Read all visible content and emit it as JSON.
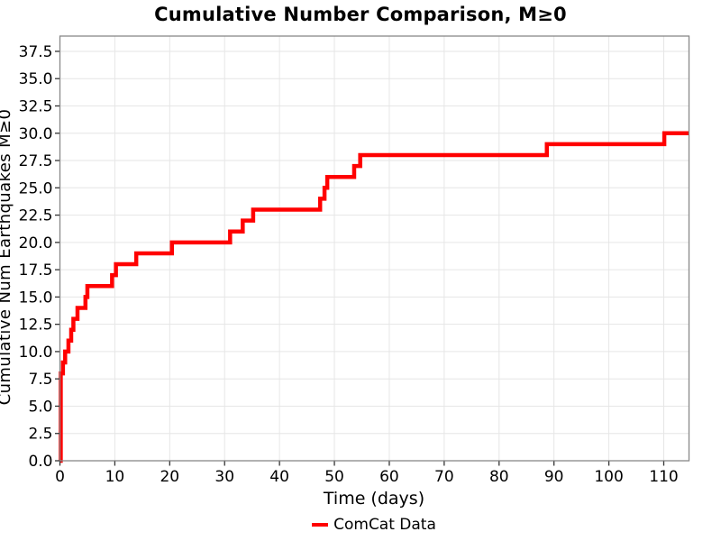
{
  "chart_data": {
    "type": "line",
    "line_style": "step-post",
    "title": "Cumulative Number Comparison, M≥0",
    "xlabel": "Time (days)",
    "ylabel": "Cumulative Num Earthquakes M≥0",
    "xlim": [
      0,
      114.6
    ],
    "ylim": [
      0,
      38.9
    ],
    "xticks": [
      0,
      10,
      20,
      30,
      40,
      50,
      60,
      70,
      80,
      90,
      100,
      110
    ],
    "yticks": [
      0.0,
      2.5,
      5.0,
      7.5,
      10.0,
      12.5,
      15.0,
      17.5,
      20.0,
      22.5,
      25.0,
      27.5,
      30.0,
      32.5,
      35.0,
      37.5
    ],
    "grid": true,
    "legend_position": "bottom-center",
    "series": [
      {
        "name": "ComCat Data",
        "color": "#ff0000",
        "points": [
          [
            0,
            0
          ],
          [
            0.15,
            8
          ],
          [
            0.55,
            9
          ],
          [
            0.95,
            10
          ],
          [
            1.55,
            11
          ],
          [
            2.05,
            12
          ],
          [
            2.45,
            13
          ],
          [
            3.2,
            14
          ],
          [
            4.65,
            15
          ],
          [
            5.0,
            16
          ],
          [
            9.5,
            17
          ],
          [
            10.2,
            18
          ],
          [
            13.9,
            19
          ],
          [
            20.4,
            20
          ],
          [
            31.0,
            21
          ],
          [
            33.3,
            22
          ],
          [
            35.2,
            23
          ],
          [
            47.4,
            24
          ],
          [
            48.2,
            25
          ],
          [
            48.7,
            26
          ],
          [
            53.6,
            27
          ],
          [
            54.7,
            28
          ],
          [
            88.7,
            29
          ],
          [
            110.1,
            30
          ]
        ],
        "x_end": 114.6
      }
    ],
    "colors": {
      "line": "#ff0000",
      "grid": "#e6e6e6",
      "spine": "#888888",
      "tick": "#333333",
      "text": "#000000"
    }
  },
  "legend": {
    "label": "ComCat Data"
  }
}
